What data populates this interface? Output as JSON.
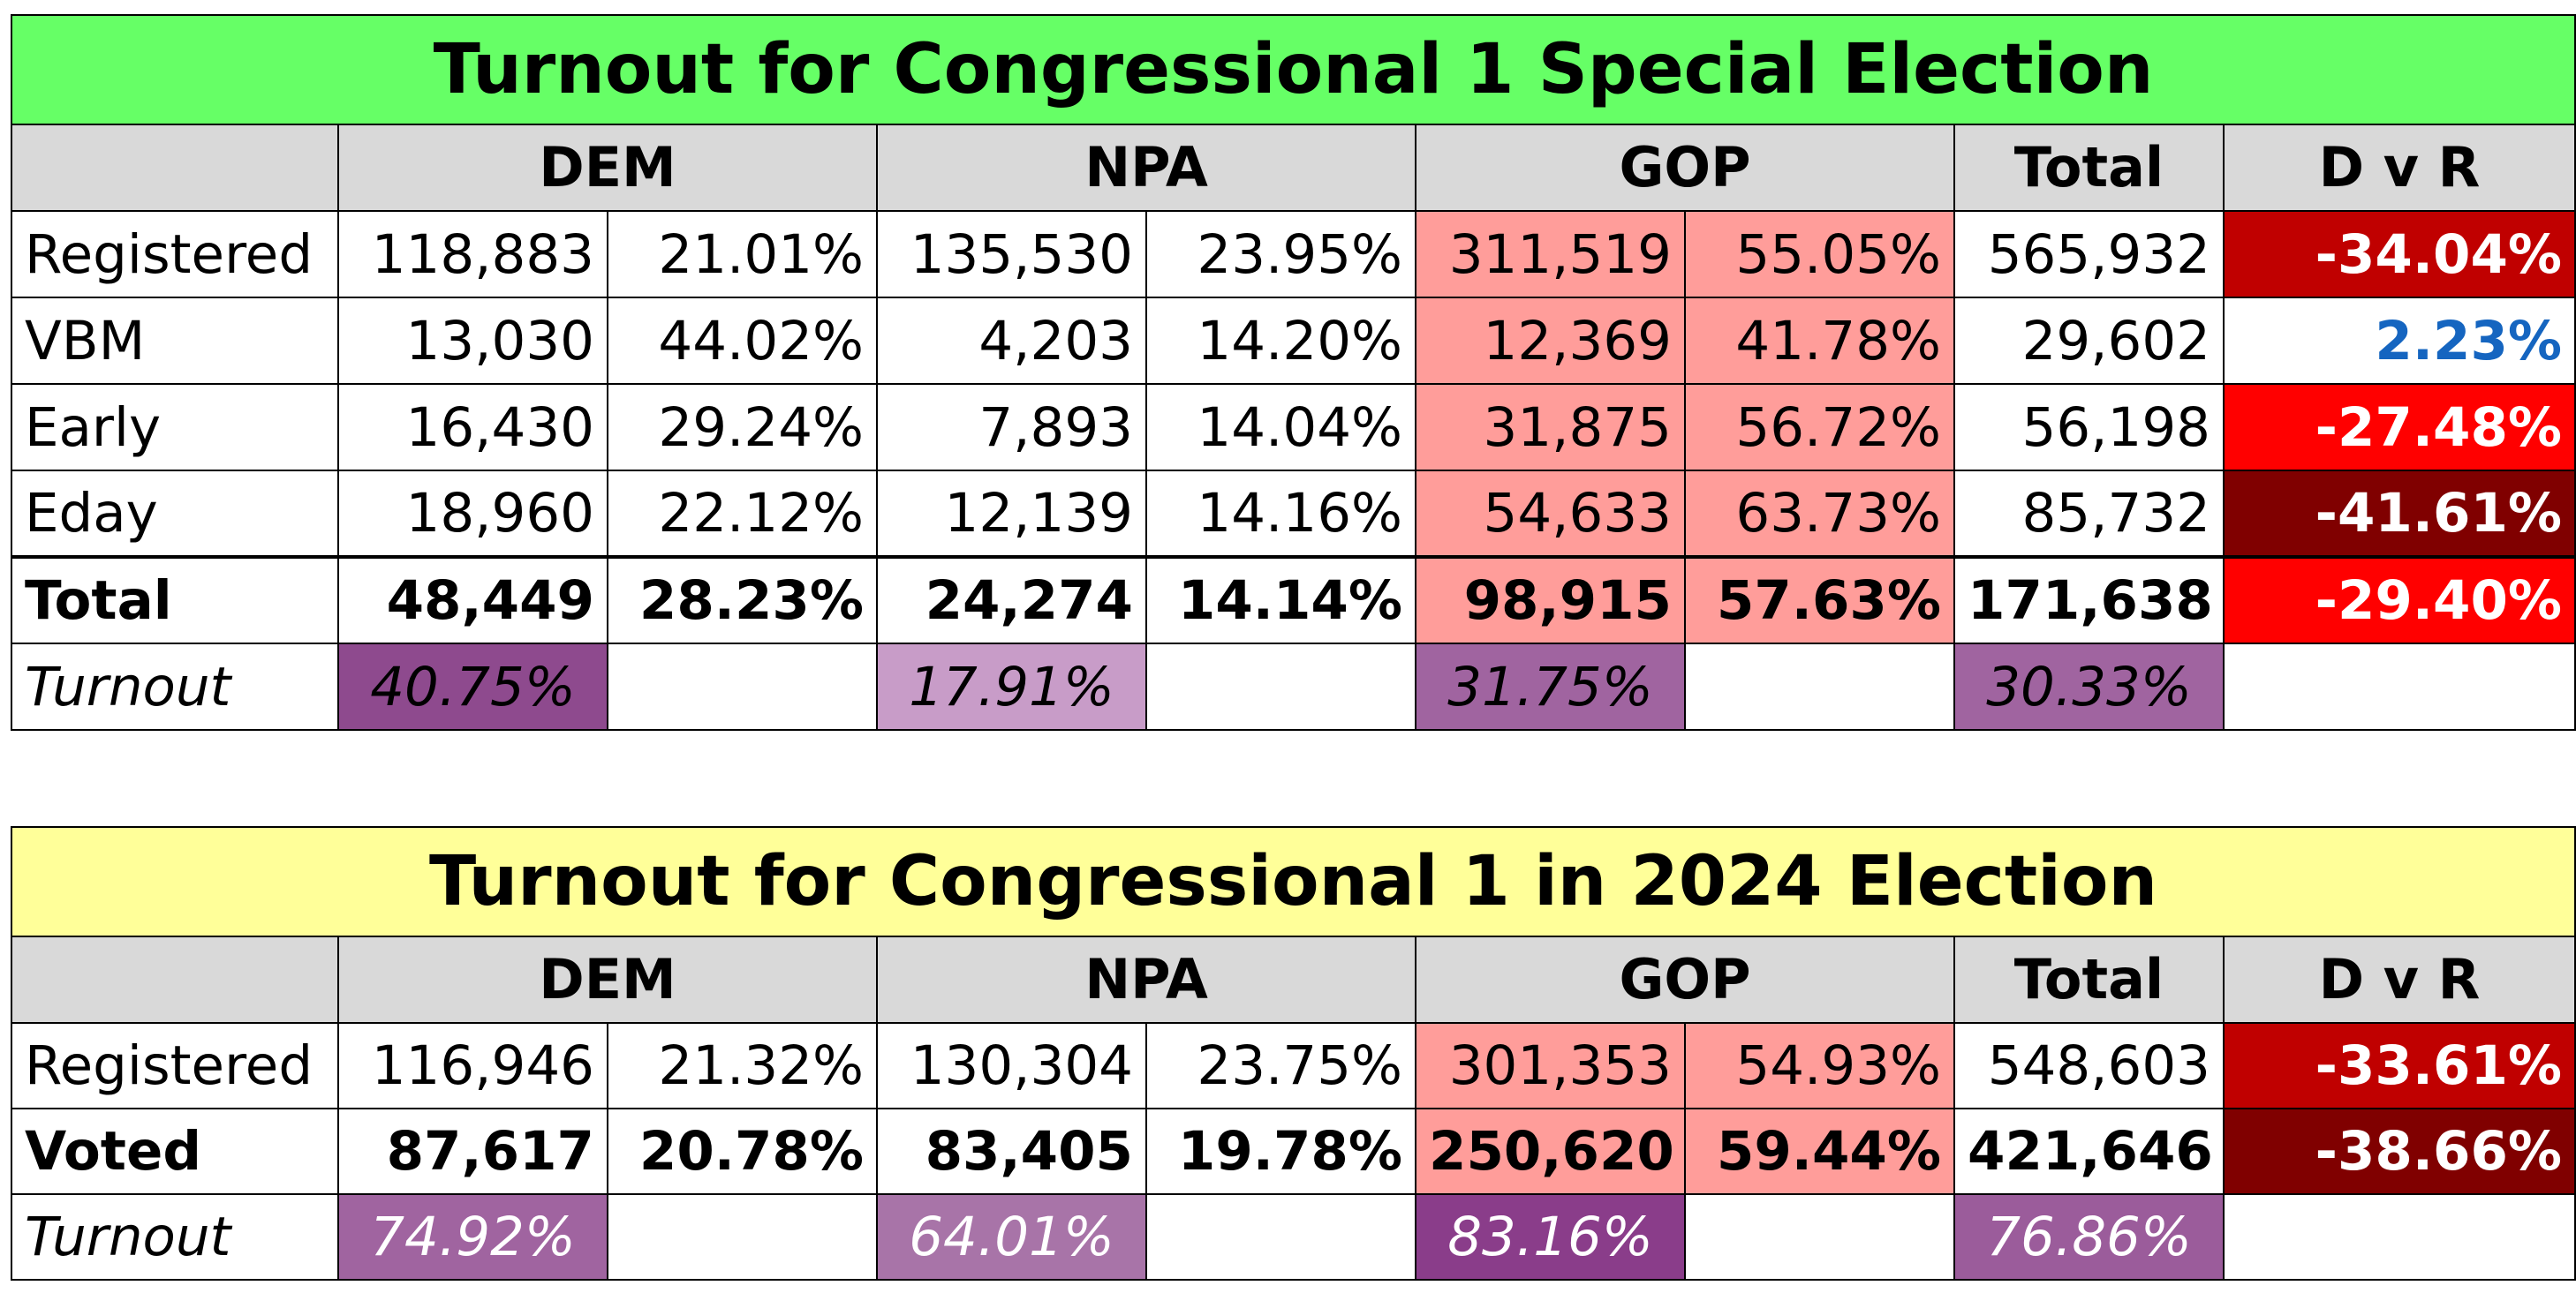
{
  "colors": {
    "title1_bg": "#66ff66",
    "title2_bg": "#ffff99",
    "header_bg": "#d9d9d9",
    "gop_bg": "#ff9d9a",
    "dvr_positive_text": "#1565c0"
  },
  "tables": [
    {
      "title": "Turnout for Congressional 1 Special Election",
      "headers": [
        "DEM",
        "NPA",
        "GOP",
        "Total",
        "D v R"
      ],
      "rows": [
        {
          "label": "Registered",
          "dem": "118,883",
          "dem_pct": "21.01%",
          "npa": "135,530",
          "npa_pct": "23.95%",
          "gop": "311,519",
          "gop_pct": "55.05%",
          "total": "565,932",
          "dvr": "-34.04%",
          "dvr_bg": "#c00000",
          "bold": false
        },
        {
          "label": "VBM",
          "dem": "13,030",
          "dem_pct": "44.02%",
          "npa": "4,203",
          "npa_pct": "14.20%",
          "gop": "12,369",
          "gop_pct": "41.78%",
          "total": "29,602",
          "dvr": "2.23%",
          "dvr_bg": "#ffffff",
          "bold": false,
          "positive": true
        },
        {
          "label": "Early",
          "dem": "16,430",
          "dem_pct": "29.24%",
          "npa": "7,893",
          "npa_pct": "14.04%",
          "gop": "31,875",
          "gop_pct": "56.72%",
          "total": "56,198",
          "dvr": "-27.48%",
          "dvr_bg": "#ff0000",
          "bold": false
        },
        {
          "label": "Eday",
          "dem": "18,960",
          "dem_pct": "22.12%",
          "npa": "12,139",
          "npa_pct": "14.16%",
          "gop": "54,633",
          "gop_pct": "63.73%",
          "total": "85,732",
          "dvr": "-41.61%",
          "dvr_bg": "#800000",
          "bold": false
        },
        {
          "label": "Total",
          "dem": "48,449",
          "dem_pct": "28.23%",
          "npa": "24,274",
          "npa_pct": "14.14%",
          "gop": "98,915",
          "gop_pct": "57.63%",
          "total": "171,638",
          "dvr": "-29.40%",
          "dvr_bg": "#ff0000",
          "bold": true
        }
      ],
      "turnout": {
        "label": "Turnout",
        "dem": "40.75%",
        "dem_bg": "#8e4a8e",
        "npa": "17.91%",
        "npa_bg": "#c89cc8",
        "gop": "31.75%",
        "gop_bg": "#a064a0",
        "total": "30.33%",
        "total_bg": "#a064a0",
        "text_color": "#000000"
      }
    },
    {
      "title": "Turnout for Congressional 1 in 2024 Election",
      "headers": [
        "DEM",
        "NPA",
        "GOP",
        "Total",
        "D v R"
      ],
      "rows": [
        {
          "label": "Registered",
          "dem": "116,946",
          "dem_pct": "21.32%",
          "npa": "130,304",
          "npa_pct": "23.75%",
          "gop": "301,353",
          "gop_pct": "54.93%",
          "total": "548,603",
          "dvr": "-33.61%",
          "dvr_bg": "#c00000",
          "bold": false
        },
        {
          "label": "Voted",
          "dem": "87,617",
          "dem_pct": "20.78%",
          "npa": "83,405",
          "npa_pct": "19.78%",
          "gop": "250,620",
          "gop_pct": "59.44%",
          "total": "421,646",
          "dvr": "-38.66%",
          "dvr_bg": "#800000",
          "bold": true
        }
      ],
      "turnout": {
        "label": "Turnout",
        "dem": "74.92%",
        "dem_bg": "#a064a0",
        "npa": "64.01%",
        "npa_bg": "#a874a8",
        "gop": "83.16%",
        "gop_bg": "#8a3d8a",
        "total": "76.86%",
        "total_bg": "#9b5c9b",
        "text_color": "#ffffff"
      }
    }
  ]
}
